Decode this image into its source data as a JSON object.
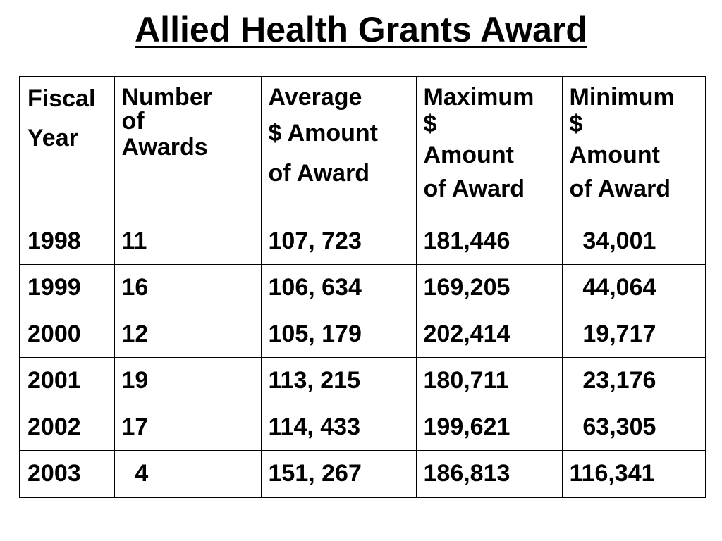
{
  "title": "Allied Health Grants Award",
  "table": {
    "headers": [
      [
        "Fiscal",
        "Year"
      ],
      [
        "Number",
        "of",
        "Awards"
      ],
      [
        "Average",
        "$ Amount",
        "of Award"
      ],
      [
        "Maximum",
        "$",
        "Amount",
        "of Award"
      ],
      [
        "Minimum",
        "$",
        "Amount",
        "of Award"
      ]
    ],
    "rows": [
      [
        "1998",
        "11",
        "107, 723",
        "181,446",
        "  34,001"
      ],
      [
        "1999",
        "16",
        "106, 634",
        "169,205",
        "  44,064"
      ],
      [
        "2000",
        "12",
        "105, 179",
        "202,414",
        "  19,717"
      ],
      [
        "2001",
        "19",
        "113, 215",
        "180,711",
        "  23,176"
      ],
      [
        "2002",
        "17",
        "114, 433",
        "199,621",
        "  63,305"
      ],
      [
        "2003",
        "  4",
        "151, 267",
        "186,813",
        "116,341"
      ]
    ]
  }
}
